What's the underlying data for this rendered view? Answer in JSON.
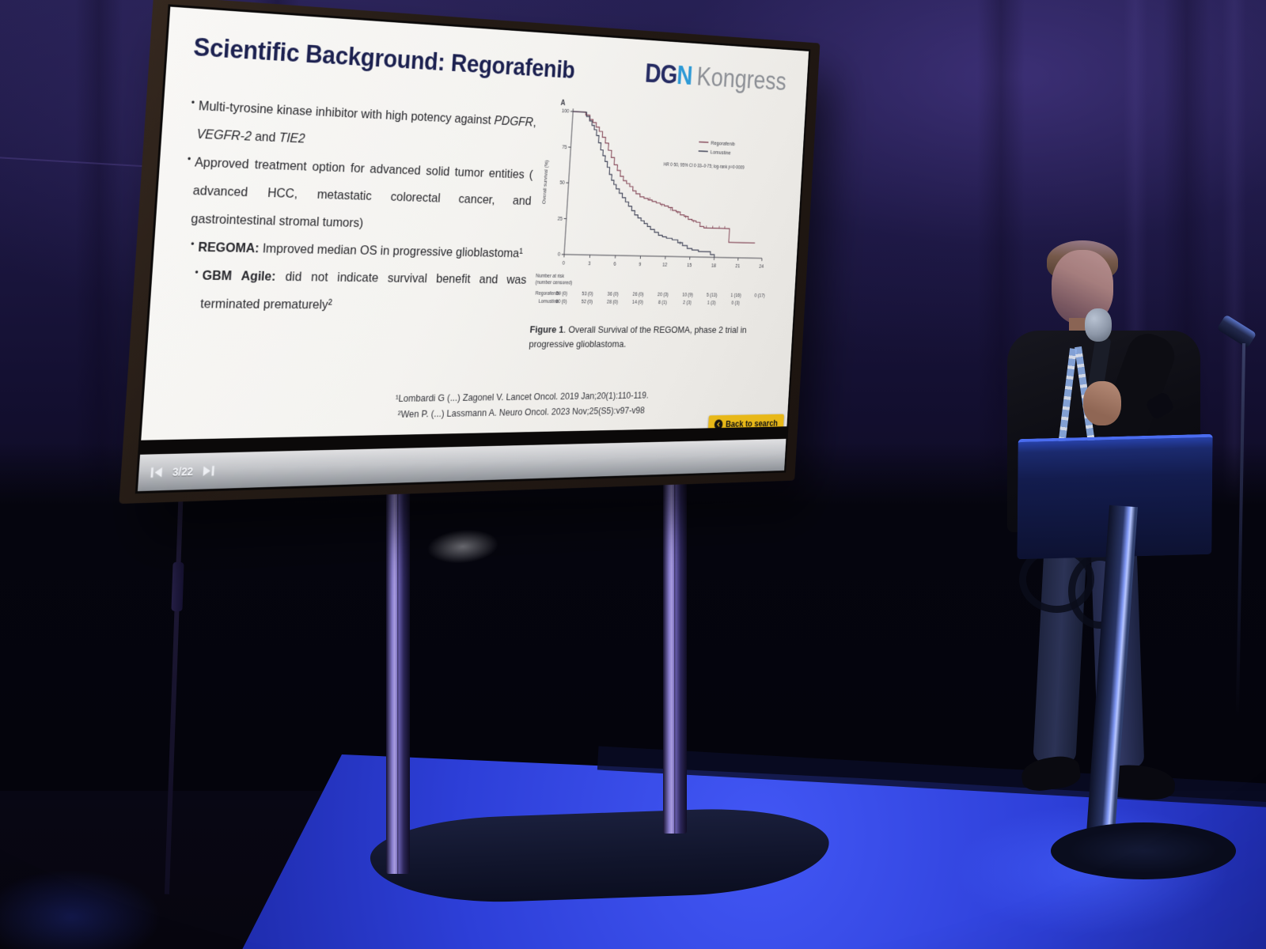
{
  "screen": {
    "toolbar": {
      "page_label": "3/22"
    },
    "back_button": {
      "label": "Back to search"
    }
  },
  "slide": {
    "title": "Scientific Background: Regorafenib",
    "logo": {
      "dgn_d": "D",
      "dgn_g": "G",
      "dgn_n": "N",
      "kongress": "Kongress"
    },
    "bullets": [
      {
        "parts": [
          {
            "t": "Multi-tyrosine kinase inhibitor with high potency against ",
            "s": ""
          },
          {
            "t": "PDGFR",
            "s": "i"
          },
          {
            "t": ", ",
            "s": ""
          },
          {
            "t": "VEGFR-2",
            "s": "i"
          },
          {
            "t": " and ",
            "s": ""
          },
          {
            "t": "TIE2",
            "s": "i"
          }
        ]
      },
      {
        "parts": [
          {
            "t": "Approved treatment option for advanced solid tumor  entities ( advanced HCC, metastatic colorectal cancer, and gastrointestinal stromal tumors)",
            "s": ""
          }
        ]
      },
      {
        "parts": [
          {
            "t": "REGOMA:",
            "s": "b"
          },
          {
            "t": " Improved median OS in progressive glioblastoma¹",
            "s": ""
          }
        ]
      },
      {
        "parts": [
          {
            "t": "GBM Agile:",
            "s": "b"
          },
          {
            "t": " did not indicate survival benefit and was terminated prematurely²",
            "s": ""
          }
        ]
      }
    ],
    "figure_caption_bold": "Figure 1",
    "figure_caption_text": ". Overall Survival of the REGOMA, phase 2 trial in progressive glioblastoma.",
    "references": [
      "¹Lombardi G (...) Zagonel V. Lancet Oncol. 2019 Jan;20(1):110-119.",
      "²Wen P. (...) Lassmann A. Neuro Oncol. 2023 Nov;25(S5):v97-v98"
    ]
  },
  "chart_data": {
    "type": "line",
    "subtype": "kaplan-meier-step",
    "panel_label": "A",
    "ylabel": "Overall survival (%)",
    "xlabel": "",
    "xlim": [
      0,
      24
    ],
    "ylim": [
      0,
      100
    ],
    "x_ticks": [
      0,
      3,
      6,
      9,
      12,
      15,
      18,
      21,
      24
    ],
    "y_ticks": [
      0,
      25,
      50,
      75,
      100
    ],
    "grid": false,
    "legend_position": "upper right",
    "annotation": "HR 0·50, 95% CI 0·33–0·75; log-rank p=0·0009",
    "series": [
      {
        "name": "Regorafenib",
        "color": "#7d3c4e",
        "steps": [
          [
            0,
            100
          ],
          [
            1.2,
            100
          ],
          [
            1.5,
            98
          ],
          [
            2,
            95
          ],
          [
            2.4,
            93
          ],
          [
            2.8,
            90
          ],
          [
            3.2,
            87
          ],
          [
            3.6,
            83
          ],
          [
            4,
            79
          ],
          [
            4.4,
            74
          ],
          [
            4.8,
            69
          ],
          [
            5.2,
            64
          ],
          [
            5.6,
            60
          ],
          [
            6,
            56
          ],
          [
            6.4,
            53
          ],
          [
            6.8,
            51
          ],
          [
            7.2,
            49
          ],
          [
            7.6,
            46
          ],
          [
            8,
            44
          ],
          [
            8.5,
            42
          ],
          [
            9,
            41
          ],
          [
            9.5,
            40
          ],
          [
            10,
            39
          ],
          [
            10.5,
            38
          ],
          [
            11,
            37
          ],
          [
            11.5,
            36
          ],
          [
            12,
            35
          ],
          [
            12.5,
            33
          ],
          [
            13,
            32
          ],
          [
            13.5,
            30
          ],
          [
            14,
            29
          ],
          [
            14.5,
            27
          ],
          [
            15,
            26
          ],
          [
            15.5,
            25
          ],
          [
            16,
            22
          ],
          [
            16.5,
            21
          ],
          [
            19.7,
            21
          ],
          [
            19.7,
            11
          ],
          [
            23,
            11
          ]
        ],
        "censor_marks": [
          [
            9.7,
            40
          ],
          [
            11.2,
            36
          ],
          [
            12.3,
            33
          ],
          [
            13.2,
            31
          ],
          [
            14.2,
            28
          ],
          [
            15.2,
            25
          ],
          [
            16.8,
            21
          ],
          [
            17.6,
            21
          ],
          [
            18.4,
            21
          ],
          [
            19.1,
            21
          ]
        ]
      },
      {
        "name": "Lomustine",
        "color": "#2f3349",
        "steps": [
          [
            0,
            100
          ],
          [
            1.3,
            100
          ],
          [
            1.6,
            97
          ],
          [
            2,
            94
          ],
          [
            2.3,
            91
          ],
          [
            2.6,
            88
          ],
          [
            2.9,
            84
          ],
          [
            3.2,
            79
          ],
          [
            3.5,
            74
          ],
          [
            3.8,
            70
          ],
          [
            4.1,
            66
          ],
          [
            4.4,
            62
          ],
          [
            4.7,
            57
          ],
          [
            5,
            53
          ],
          [
            5.3,
            50
          ],
          [
            5.6,
            47
          ],
          [
            6,
            44
          ],
          [
            6.4,
            41
          ],
          [
            6.8,
            38
          ],
          [
            7.2,
            35
          ],
          [
            7.6,
            32
          ],
          [
            8,
            29
          ],
          [
            8.4,
            27
          ],
          [
            8.8,
            25
          ],
          [
            9.2,
            23
          ],
          [
            9.6,
            21
          ],
          [
            10,
            19
          ],
          [
            10.5,
            17
          ],
          [
            11,
            15
          ],
          [
            11.5,
            14
          ],
          [
            12,
            13
          ],
          [
            12.7,
            12
          ],
          [
            13.4,
            10
          ],
          [
            14,
            8
          ],
          [
            14.6,
            6
          ],
          [
            15.2,
            5
          ],
          [
            16,
            4
          ],
          [
            17,
            4
          ],
          [
            17.5,
            2
          ],
          [
            18,
            0
          ]
        ],
        "censor_marks": [
          [
            13.7,
            9
          ]
        ]
      }
    ],
    "number_at_risk": {
      "label_line1": "Number at risk",
      "label_line2": "(number censored)",
      "rows": [
        {
          "name": "Regorafenib",
          "values": [
            "59 (0)",
            "53 (0)",
            "36 (0)",
            "26 (0)",
            "20 (3)",
            "10 (9)",
            "5 (13)",
            "1 (16)",
            "0 (17)"
          ]
        },
        {
          "name": "Lomustine",
          "values": [
            "60 (0)",
            "52 (0)",
            "28 (0)",
            "14 (0)",
            "8 (1)",
            "2 (3)",
            "1 (3)",
            "0 (3)"
          ]
        }
      ]
    }
  },
  "colors": {
    "accent_yellow": "#e8b818",
    "dgn_blue_dark": "#262c63",
    "dgn_blue_light": "#2e9ad6",
    "kongress_gray": "#8d9096",
    "title_navy": "#1c2150",
    "regorafenib_line": "#7d3c4e",
    "lomustine_line": "#2f3349",
    "floor_blue": "#2d3fd8"
  }
}
